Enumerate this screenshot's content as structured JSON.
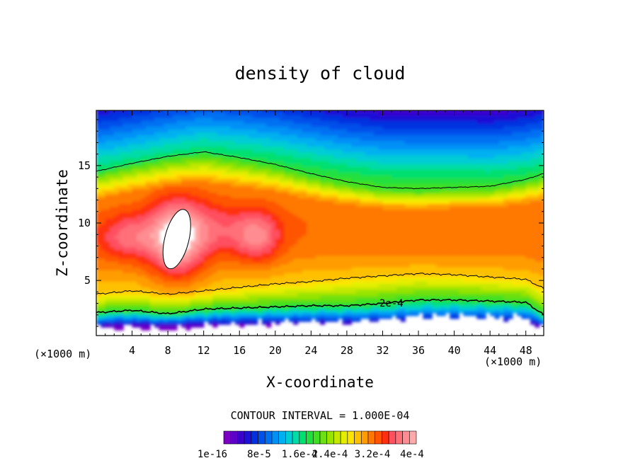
{
  "chart_data": {
    "type": "heatmap",
    "title": "density of cloud",
    "xlabel": "X-coordinate",
    "ylabel": "Z-coordinate",
    "x_unit_label": "(×1000 m)",
    "z_unit_label": "(×1000 m)",
    "xlim": [
      0,
      50
    ],
    "ylim": [
      0.2,
      19.8
    ],
    "x_ticks": [
      4,
      8,
      12,
      16,
      20,
      24,
      28,
      32,
      36,
      40,
      44,
      48
    ],
    "y_ticks": [
      5,
      10,
      15
    ],
    "contour_interval_text": "CONTOUR INTERVAL = 1.000E-04",
    "contour_label": "2e-4",
    "colorbar": {
      "range": [
        1e-16,
        0.00044
      ],
      "tick_labels": [
        "1e-16",
        "8e-5",
        "1.6e-4",
        "2.4e-4",
        "3.2e-4",
        "4e-4"
      ],
      "colors": [
        "#7b00c4",
        "#5d00c8",
        "#3b00cc",
        "#1f10d6",
        "#0030e0",
        "#0050ea",
        "#0070f2",
        "#0090f6",
        "#00b0f0",
        "#00ccd6",
        "#00dca8",
        "#00e070",
        "#20e040",
        "#40e020",
        "#6ce010",
        "#98e400",
        "#c4e800",
        "#e6ee00",
        "#ffe400",
        "#ffc000",
        "#ff9c00",
        "#ff7800",
        "#ff5400",
        "#ff3010",
        "#ff5060",
        "#ff6f78",
        "#ff8c90",
        "#ffaaaa"
      ]
    },
    "isolines_at_x": [
      0,
      4,
      8,
      12,
      16,
      20,
      24,
      28,
      32,
      36,
      40,
      44,
      48,
      50
    ],
    "isoline_upper_z": [
      14.5,
      15.2,
      15.8,
      16.2,
      15.7,
      15.1,
      14.3,
      13.6,
      13.1,
      13.0,
      13.1,
      13.2,
      13.8,
      14.3
    ],
    "isoline_mid_z": [
      3.8,
      4.1,
      3.8,
      4.1,
      4.4,
      4.7,
      4.9,
      5.2,
      5.4,
      5.6,
      5.5,
      5.3,
      5.1,
      4.3
    ],
    "isoline_low_z": [
      2.2,
      2.4,
      2.1,
      2.5,
      2.6,
      2.7,
      2.8,
      2.8,
      3.0,
      3.3,
      3.3,
      3.2,
      3.1,
      2.0
    ],
    "max_region_center": [
      9.0,
      8.6
    ]
  }
}
